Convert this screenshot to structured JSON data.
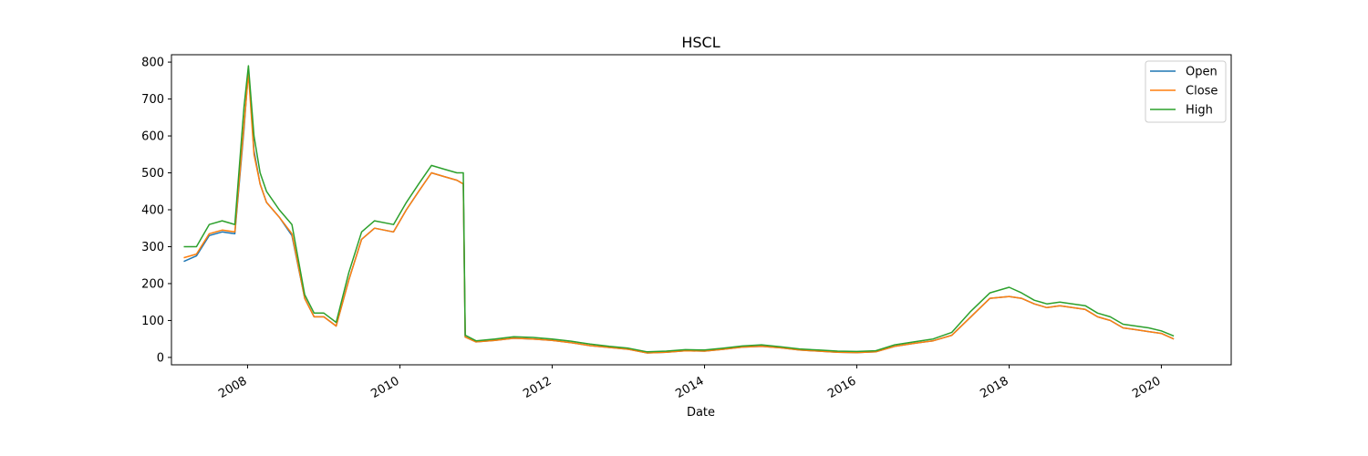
{
  "chart_data": {
    "type": "line",
    "title": "HSCL",
    "xlabel": "Date",
    "ylabel": "",
    "xlim": [
      "2007-01-01",
      "2020-12-01"
    ],
    "ylim": [
      -20,
      820
    ],
    "x_ticks": [
      "2008",
      "2010",
      "2012",
      "2014",
      "2016",
      "2018",
      "2020"
    ],
    "y_ticks": [
      0,
      100,
      200,
      300,
      400,
      500,
      600,
      700,
      800
    ],
    "grid": false,
    "legend_position": "top-right",
    "x": [
      "2007-03-01",
      "2007-05-01",
      "2007-07-01",
      "2007-09-01",
      "2007-11-01",
      "2007-12-15",
      "2008-01-05",
      "2008-02-01",
      "2008-03-01",
      "2008-04-01",
      "2008-06-01",
      "2008-08-01",
      "2008-10-01",
      "2008-11-15",
      "2009-01-01",
      "2009-03-01",
      "2009-05-01",
      "2009-07-01",
      "2009-09-01",
      "2009-12-01",
      "2010-02-01",
      "2010-04-01",
      "2010-06-01",
      "2010-08-01",
      "2010-10-01",
      "2010-11-01",
      "2010-11-10",
      "2011-01-01",
      "2011-04-01",
      "2011-07-01",
      "2011-10-01",
      "2012-01-01",
      "2012-04-01",
      "2012-07-01",
      "2012-10-01",
      "2013-01-01",
      "2013-04-01",
      "2013-07-01",
      "2013-10-01",
      "2014-01-01",
      "2014-04-01",
      "2014-07-01",
      "2014-10-01",
      "2015-01-01",
      "2015-04-01",
      "2015-07-01",
      "2015-10-01",
      "2016-01-01",
      "2016-04-01",
      "2016-07-01",
      "2016-10-01",
      "2017-01-01",
      "2017-04-01",
      "2017-07-01",
      "2017-10-01",
      "2018-01-01",
      "2018-03-01",
      "2018-05-01",
      "2018-07-01",
      "2018-09-01",
      "2018-11-01",
      "2019-01-01",
      "2019-03-01",
      "2019-05-01",
      "2019-07-01",
      "2019-09-01",
      "2019-11-01",
      "2020-01-01",
      "2020-03-01"
    ],
    "series": [
      {
        "name": "Open",
        "color": "#1f77b4",
        "values": [
          260,
          275,
          330,
          340,
          335,
          620,
          780,
          560,
          470,
          420,
          380,
          330,
          160,
          110,
          110,
          85,
          210,
          320,
          350,
          340,
          400,
          450,
          500,
          490,
          480,
          470,
          55,
          42,
          46,
          52,
          50,
          46,
          40,
          32,
          27,
          22,
          12,
          14,
          18,
          17,
          22,
          28,
          30,
          26,
          20,
          17,
          14,
          13,
          15,
          30,
          38,
          45,
          60,
          110,
          160,
          165,
          160,
          145,
          135,
          140,
          135,
          130,
          110,
          100,
          80,
          75,
          70,
          65,
          50
        ]
      },
      {
        "name": "Close",
        "color": "#ff7f0e",
        "values": [
          270,
          280,
          335,
          345,
          340,
          630,
          770,
          550,
          470,
          420,
          380,
          335,
          160,
          110,
          110,
          85,
          210,
          320,
          350,
          340,
          400,
          450,
          500,
          490,
          480,
          470,
          55,
          42,
          46,
          52,
          50,
          46,
          40,
          32,
          27,
          22,
          12,
          14,
          18,
          17,
          22,
          28,
          30,
          26,
          20,
          17,
          14,
          13,
          15,
          30,
          38,
          45,
          60,
          110,
          160,
          165,
          160,
          145,
          135,
          140,
          135,
          130,
          110,
          100,
          80,
          75,
          70,
          65,
          50
        ]
      },
      {
        "name": "High",
        "color": "#2ca02c",
        "values": [
          300,
          300,
          360,
          370,
          360,
          680,
          790,
          600,
          500,
          450,
          400,
          360,
          170,
          120,
          120,
          95,
          230,
          340,
          370,
          360,
          420,
          470,
          520,
          510,
          500,
          500,
          60,
          45,
          50,
          56,
          54,
          50,
          44,
          36,
          30,
          25,
          15,
          17,
          21,
          20,
          25,
          31,
          34,
          29,
          23,
          20,
          17,
          16,
          18,
          34,
          42,
          50,
          68,
          125,
          175,
          190,
          175,
          155,
          145,
          150,
          145,
          140,
          120,
          110,
          90,
          85,
          80,
          72,
          58
        ]
      }
    ]
  }
}
